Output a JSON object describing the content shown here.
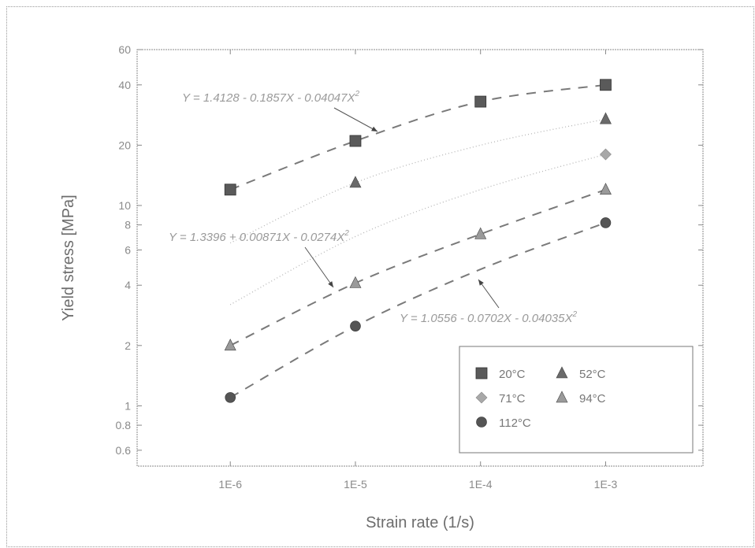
{
  "chart_data": {
    "type": "scatter",
    "title": "",
    "xlabel": "Strain rate (1/s)",
    "ylabel": "Yield stress [MPa]",
    "xscale": "log",
    "yscale": "log",
    "xlim": [
      1.8e-07,
      0.006
    ],
    "ylim": [
      0.5,
      60
    ],
    "x_ticks": [
      {
        "value": 1e-06,
        "label": "1E-6"
      },
      {
        "value": 1e-05,
        "label": "1E-5"
      },
      {
        "value": 0.0001,
        "label": "1E-4"
      },
      {
        "value": 0.001,
        "label": "1E-3"
      }
    ],
    "y_ticks": [
      {
        "value": 60,
        "label": "60"
      },
      {
        "value": 40,
        "label": "40"
      },
      {
        "value": 20,
        "label": "20"
      },
      {
        "value": 10,
        "label": "10"
      },
      {
        "value": 8,
        "label": "8"
      },
      {
        "value": 6,
        "label": "6"
      },
      {
        "value": 4,
        "label": "4"
      },
      {
        "value": 2,
        "label": "2"
      },
      {
        "value": 1,
        "label": "1"
      },
      {
        "value": 0.8,
        "label": "0.8"
      },
      {
        "value": 0.6,
        "label": "0.6"
      }
    ],
    "grid": false,
    "legend_position": "bottom-right",
    "series": [
      {
        "name": "20°C",
        "marker": "square",
        "color": "#5a5a5a",
        "x": [
          1e-06,
          1e-05,
          0.0001,
          0.001
        ],
        "y": [
          12,
          21,
          33,
          40
        ]
      },
      {
        "name": "52°C",
        "marker": "triangle",
        "color": "#6a6a6a",
        "x": [
          1e-05,
          0.001
        ],
        "y": [
          13,
          27
        ]
      },
      {
        "name": "71°C",
        "marker": "diamond",
        "color": "#a8a8a8",
        "x": [
          0.001
        ],
        "y": [
          18
        ]
      },
      {
        "name": "94°C",
        "marker": "triangle",
        "color": "#9a9a9a",
        "x": [
          1e-06,
          1e-05,
          0.0001,
          0.001
        ],
        "y": [
          2,
          4.1,
          7.2,
          12
        ]
      },
      {
        "name": "112°C",
        "marker": "circle",
        "color": "#555555",
        "x": [
          1e-06,
          1e-05,
          0.001
        ],
        "y": [
          1.1,
          2.5,
          8.2
        ]
      }
    ],
    "fits": [
      {
        "label": "Y = 1.4128 - 0.1857X - 0.04047X",
        "superscript": "2",
        "style": "dashed",
        "points": [
          [
            1e-06,
            12
          ],
          [
            1e-05,
            21
          ],
          [
            0.0001,
            33
          ],
          [
            0.001,
            40
          ]
        ]
      },
      {
        "label": "Y = 1.3396 + 0.00871X - 0.0274X",
        "superscript": "2",
        "style": "dashed",
        "points": [
          [
            1e-06,
            2
          ],
          [
            1e-05,
            4.1
          ],
          [
            0.0001,
            7.2
          ],
          [
            0.001,
            12
          ]
        ]
      },
      {
        "label": "Y = 1.0556 - 0.0702X - 0.04035X",
        "superscript": "2",
        "style": "dashed",
        "points": [
          [
            1e-06,
            1.1
          ],
          [
            1e-05,
            2.5
          ],
          [
            0.0001,
            4.8
          ],
          [
            0.001,
            8.2
          ]
        ]
      },
      {
        "label": "",
        "style": "dotted",
        "points": [
          [
            1e-06,
            6.5
          ],
          [
            1e-05,
            13
          ],
          [
            0.0001,
            20
          ],
          [
            0.001,
            27
          ]
        ]
      },
      {
        "label": "",
        "style": "dotted",
        "points": [
          [
            1e-06,
            3.2
          ],
          [
            1e-05,
            7
          ],
          [
            0.0001,
            12
          ],
          [
            0.001,
            18
          ]
        ]
      }
    ]
  }
}
